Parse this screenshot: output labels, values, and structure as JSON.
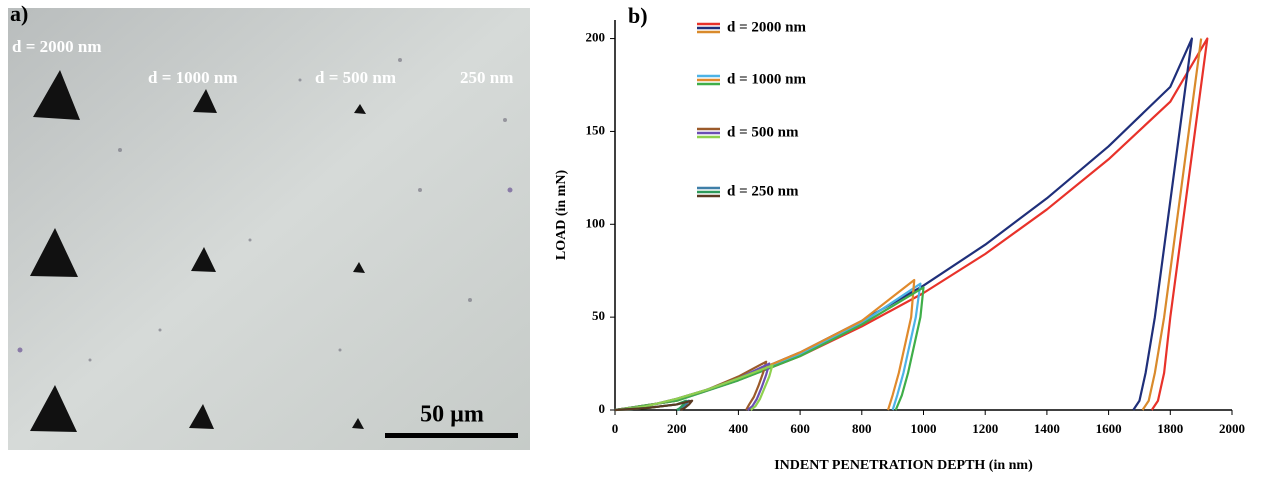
{
  "image_panel": {
    "label": "a)",
    "labels": [
      "d = 2000 nm",
      "d = 1000 nm",
      "d = 500 nm",
      "250 nm"
    ],
    "scale_bar": "50 µm"
  },
  "chart_data": {
    "type": "line",
    "panel_label": "b)",
    "x_label": "INDENT PENETRATION DEPTH (in nm)",
    "y_label": "LOAD (in mN)",
    "xlim": [
      0,
      2000
    ],
    "ylim": [
      0,
      210
    ],
    "xticks": [
      0,
      200,
      400,
      600,
      800,
      1000,
      1200,
      1400,
      1600,
      1800,
      2000
    ],
    "yticks": [
      0,
      50,
      100,
      150,
      200
    ],
    "series": [
      {
        "name": "d = 2000 nm",
        "curves": [
          {
            "color": "#e8322a",
            "x": [
              0,
              200,
              400,
              600,
              800,
              1000,
              1200,
              1400,
              1600,
              1800,
              1920,
              1880,
              1840,
              1800,
              1780,
              1760,
              1740
            ],
            "values": [
              0,
              5,
              16,
              29,
              45,
              63,
              84,
              108,
              135,
              166,
              200,
              150,
              100,
              50,
              20,
              5,
              0
            ]
          },
          {
            "color": "#1f2f7a",
            "x": [
              0,
              200,
              400,
              600,
              800,
              1000,
              1200,
              1400,
              1600,
              1800,
              1870,
              1830,
              1790,
              1750,
              1720,
              1700,
              1680
            ],
            "values": [
              0,
              5,
              17,
              31,
              48,
              67,
              89,
              114,
              142,
              174,
              200,
              150,
              100,
              50,
              20,
              5,
              0
            ]
          },
          {
            "color": "#d98a2b",
            "x": [
              1900,
              1860,
              1820,
              1780,
              1750,
              1730,
              1710
            ],
            "values": [
              200,
              150,
              100,
              50,
              20,
              5,
              0
            ]
          }
        ]
      },
      {
        "name": "d = 1000 nm",
        "curves": [
          {
            "color": "#4db3e6",
            "x": [
              0,
              200,
              400,
              600,
              800,
              990,
              975,
              955,
              935,
              915,
              900
            ],
            "values": [
              0,
              5,
              16,
              30,
              47,
              68,
              50,
              35,
              20,
              8,
              0
            ]
          },
          {
            "color": "#e08a2c",
            "x": [
              0,
              200,
              400,
              600,
              800,
              970,
              960,
              940,
              920,
              900,
              885
            ],
            "values": [
              0,
              5,
              17,
              31,
              48,
              70,
              50,
              35,
              20,
              8,
              0
            ]
          },
          {
            "color": "#3fae49",
            "x": [
              0,
              200,
              400,
              600,
              800,
              1000,
              990,
              970,
              950,
              930,
              910
            ],
            "values": [
              0,
              5,
              16,
              29,
              46,
              66,
              50,
              35,
              20,
              8,
              0
            ]
          }
        ]
      },
      {
        "name": "d = 500 nm",
        "curves": [
          {
            "color": "#9b5a2a",
            "x": [
              0,
              100,
              200,
              300,
              400,
              490,
              480,
              465,
              450,
              435,
              425
            ],
            "values": [
              0,
              2,
              6,
              11,
              18,
              26,
              20,
              13,
              7,
              3,
              0
            ]
          },
          {
            "color": "#6a4fb3",
            "x": [
              0,
              100,
              200,
              300,
              400,
              500,
              490,
              475,
              460,
              445,
              430
            ],
            "values": [
              0,
              2,
              6,
              11,
              17,
              25,
              19,
              12,
              6,
              2,
              0
            ]
          },
          {
            "color": "#8fd14f",
            "x": [
              0,
              100,
              200,
              300,
              400,
              510,
              500,
              485,
              470,
              455,
              440
            ],
            "values": [
              0,
              2,
              6,
              11,
              17,
              24,
              18,
              12,
              6,
              2,
              0
            ]
          }
        ]
      },
      {
        "name": "d = 250 nm",
        "curves": [
          {
            "color": "#3f7fa8",
            "x": [
              0,
              100,
              200,
              240,
              230,
              215,
              205
            ],
            "values": [
              0,
              1,
              3,
              5,
              3,
              1,
              0
            ]
          },
          {
            "color": "#2e9a5b",
            "x": [
              0,
              100,
              200,
              230,
              222,
              210,
              200
            ],
            "values": [
              0,
              1,
              3,
              5,
              3,
              1,
              0
            ]
          },
          {
            "color": "#5a3a22",
            "x": [
              0,
              100,
              200,
              250,
              240,
              225,
              212
            ],
            "values": [
              0,
              1,
              3,
              5,
              3,
              1,
              0
            ]
          }
        ]
      }
    ]
  }
}
